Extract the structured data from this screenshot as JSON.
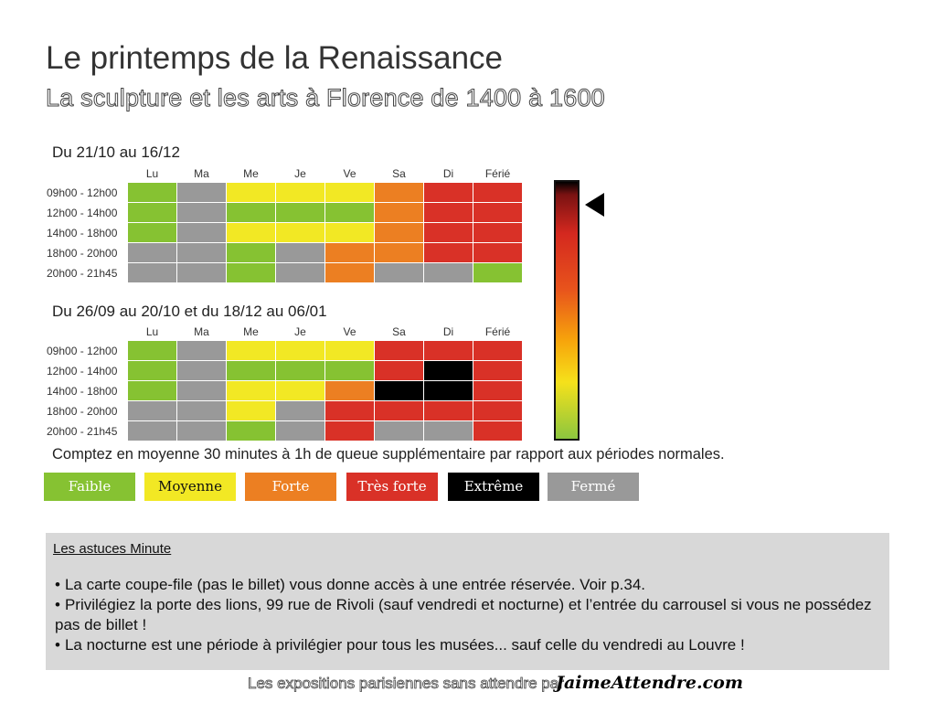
{
  "header": {
    "title": "Le printemps de la Renaissance",
    "subtitle": "La sculpture et les arts à Florence de 1400 à 1600"
  },
  "days": [
    "Lu",
    "Ma",
    "Me",
    "Je",
    "Ve",
    "Sa",
    "Di",
    "Férié"
  ],
  "periods": [
    {
      "label": "Du 21/10 au 16/12",
      "rows": [
        {
          "time": "09h00 - 12h00",
          "levels": [
            "faible",
            "ferme",
            "moyenne",
            "moyenne",
            "moyenne",
            "forte",
            "tres_forte",
            "tres_forte"
          ]
        },
        {
          "time": "12h00 - 14h00",
          "levels": [
            "faible",
            "ferme",
            "faible",
            "faible",
            "faible",
            "forte",
            "tres_forte",
            "tres_forte"
          ]
        },
        {
          "time": "14h00 - 18h00",
          "levels": [
            "faible",
            "ferme",
            "moyenne",
            "moyenne",
            "moyenne",
            "forte",
            "tres_forte",
            "tres_forte"
          ]
        },
        {
          "time": "18h00 - 20h00",
          "levels": [
            "ferme",
            "ferme",
            "faible",
            "ferme",
            "forte",
            "forte",
            "tres_forte",
            "tres_forte"
          ]
        },
        {
          "time": "20h00 - 21h45",
          "levels": [
            "ferme",
            "ferme",
            "faible",
            "ferme",
            "forte",
            "ferme",
            "ferme",
            "faible"
          ]
        }
      ]
    },
    {
      "label": "Du 26/09 au 20/10 et du 18/12 au 06/01",
      "rows": [
        {
          "time": "09h00 - 12h00",
          "levels": [
            "faible",
            "ferme",
            "moyenne",
            "moyenne",
            "moyenne",
            "tres_forte",
            "tres_forte",
            "tres_forte"
          ]
        },
        {
          "time": "12h00 - 14h00",
          "levels": [
            "faible",
            "ferme",
            "faible",
            "faible",
            "faible",
            "tres_forte",
            "extreme",
            "tres_forte"
          ]
        },
        {
          "time": "14h00 - 18h00",
          "levels": [
            "faible",
            "ferme",
            "moyenne",
            "moyenne",
            "forte",
            "extreme",
            "extreme",
            "tres_forte"
          ]
        },
        {
          "time": "18h00 - 20h00",
          "levels": [
            "ferme",
            "ferme",
            "moyenne",
            "ferme",
            "tres_forte",
            "tres_forte",
            "tres_forte",
            "tres_forte"
          ]
        },
        {
          "time": "20h00 - 21h45",
          "levels": [
            "ferme",
            "ferme",
            "faible",
            "ferme",
            "tres_forte",
            "ferme",
            "ferme",
            "tres_forte"
          ]
        }
      ]
    }
  ],
  "level_colors": {
    "faible": "#86c232",
    "moyenne": "#f2e824",
    "forte": "#ec7f22",
    "tres_forte": "#d93127",
    "extreme": "#000000",
    "ferme": "#999999"
  },
  "note": "Comptez en moyenne 30 minutes à 1h de queue supplémentaire par rapport aux périodes normales.",
  "legend": [
    {
      "key": "faible",
      "label": "Faible",
      "bg": "#86c232",
      "color": "#ffffff"
    },
    {
      "key": "moyenne",
      "label": "Moyenne",
      "bg": "#f2e824",
      "color": "#111111"
    },
    {
      "key": "forte",
      "label": "Forte",
      "bg": "#ec7f22",
      "color": "#ffffff"
    },
    {
      "key": "tres_forte",
      "label": "Très forte",
      "bg": "#d93127",
      "color": "#ffffff"
    },
    {
      "key": "extreme",
      "label": "Extrême",
      "bg": "#000000",
      "color": "#ffffff"
    },
    {
      "key": "ferme",
      "label": "Fermé",
      "bg": "#999999",
      "color": "#ffffff"
    }
  ],
  "tips": {
    "title": "Les astuces Minute",
    "items": [
      "La carte coupe-file (pas le billet) vous donne accès à une entrée réservée. Voir p.34.",
      "Privilégiez la porte des lions, 99 rue de Rivoli (sauf vendredi et nocturne) et l’entrée du carrousel si vous ne possédez pas de billet !",
      "La nocturne est une période à privilégier pour tous les musées... sauf celle du vendredi au Louvre !"
    ]
  },
  "footer": {
    "text": "Les expositions parisiennes sans attendre par",
    "brand": "JaimeAttendre.com"
  }
}
